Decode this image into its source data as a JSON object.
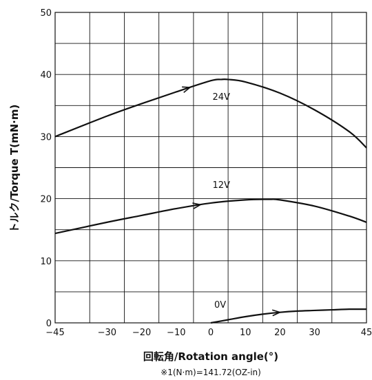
{
  "chart_data": {
    "type": "line",
    "xlabel": "回転角/Rotation angle(°)",
    "ylabel": "トルク/Torque T(mN·m)",
    "note": "※1(N·m)=141.72(OZ-in)",
    "xlim": [
      -45,
      45
    ],
    "ylim": [
      0,
      50
    ],
    "x_ticks": [
      -45,
      -30,
      -20,
      -10,
      0,
      10,
      20,
      30,
      45
    ],
    "y_ticks": [
      0,
      10,
      20,
      30,
      40,
      50
    ],
    "grid": true,
    "series": [
      {
        "name": "24V",
        "x": [
          -45,
          -30,
          -20,
          -10,
          0,
          3,
          5,
          10,
          20,
          30,
          40,
          45
        ],
        "y": [
          30.0,
          33.3,
          35.3,
          37.2,
          39.0,
          39.2,
          39.2,
          38.8,
          37.0,
          34.3,
          30.8,
          28.2
        ],
        "arrow_at_x": -6
      },
      {
        "name": "12V",
        "x": [
          -45,
          -30,
          -20,
          -10,
          0,
          10,
          17,
          20,
          30,
          40,
          45
        ],
        "y": [
          14.4,
          16.2,
          17.3,
          18.4,
          19.3,
          19.8,
          19.9,
          19.8,
          18.8,
          17.2,
          16.2
        ],
        "arrow_at_x": -3
      },
      {
        "name": "0V",
        "x": [
          0,
          5,
          10,
          15,
          20,
          25,
          30,
          35,
          40,
          45
        ],
        "y": [
          0.0,
          0.5,
          1.0,
          1.4,
          1.7,
          1.9,
          2.0,
          2.1,
          2.2,
          2.2
        ],
        "arrow_at_x": 20
      }
    ],
    "label_positions": [
      {
        "series": "24V",
        "x": 0.5,
        "y": 36.5
      },
      {
        "series": "12V",
        "x": 0.5,
        "y": 22.3
      },
      {
        "series": "0V",
        "x": 1.0,
        "y": 3.0
      }
    ]
  }
}
